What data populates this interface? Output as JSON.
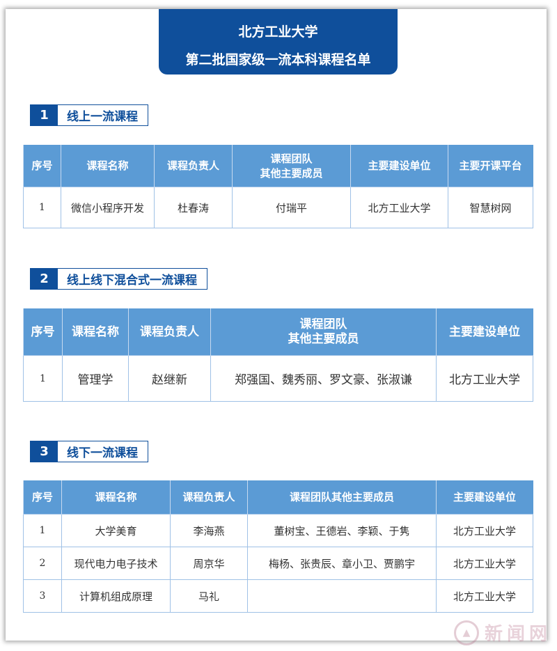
{
  "header": {
    "university": "北方工业大学",
    "title": "第二批国家级一流本科课程名单"
  },
  "sections": [
    {
      "number": "1",
      "title": "线上一流课程",
      "columns": [
        "序号",
        "课程名称",
        "课程负责人",
        "课程团队\n其他主要成员",
        "主要建设单位",
        "主要开课平台"
      ],
      "rows": [
        [
          "1",
          "微信小程序开发",
          "杜春涛",
          "付瑞平",
          "北方工业大学",
          "智慧树网"
        ]
      ]
    },
    {
      "number": "2",
      "title": "线上线下混合式一流课程",
      "columns": [
        "序号",
        "课程名称",
        "课程负责人",
        "课程团队\n其他主要成员",
        "主要建设单位"
      ],
      "rows": [
        [
          "1",
          "管理学",
          "赵继新",
          "郑强国、魏秀丽、罗文豪、张淑谦",
          "北方工业大学"
        ]
      ]
    },
    {
      "number": "3",
      "title": "线下一流课程",
      "columns": [
        "序号",
        "课程名称",
        "课程负责人",
        "课程团队其他主要成员",
        "主要建设单位"
      ],
      "rows": [
        [
          "1",
          "大学美育",
          "李海燕",
          "董树宝、王德岩、李颖、于隽",
          "北方工业大学"
        ],
        [
          "2",
          "现代电力电子技术",
          "周京华",
          "梅杨、张贵辰、章小卫、贾鹏宇",
          "北方工业大学"
        ],
        [
          "3",
          "计算机组成原理",
          "马礼",
          "",
          "北方工业大学"
        ]
      ]
    }
  ],
  "watermark": "新闻网",
  "colors": {
    "title_bg": "#0f4f9b",
    "table_header": "#5b9bd5"
  }
}
